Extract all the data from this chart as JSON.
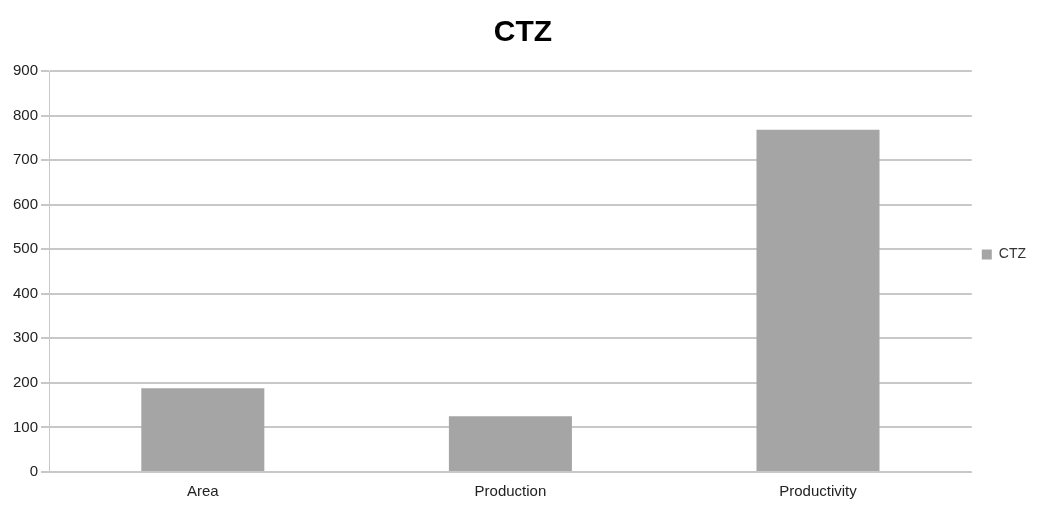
{
  "chart_data": {
    "type": "bar",
    "title": "CTZ",
    "categories": [
      "Area",
      "Production",
      "Productivity"
    ],
    "series": [
      {
        "name": "CTZ",
        "color": "#a5a5a5",
        "values": [
          188,
          125,
          768
        ]
      }
    ],
    "ylim": [
      0,
      900
    ],
    "yticks": [
      0,
      100,
      200,
      300,
      400,
      500,
      600,
      700,
      800,
      900
    ],
    "grid": "y",
    "legend": "right"
  }
}
